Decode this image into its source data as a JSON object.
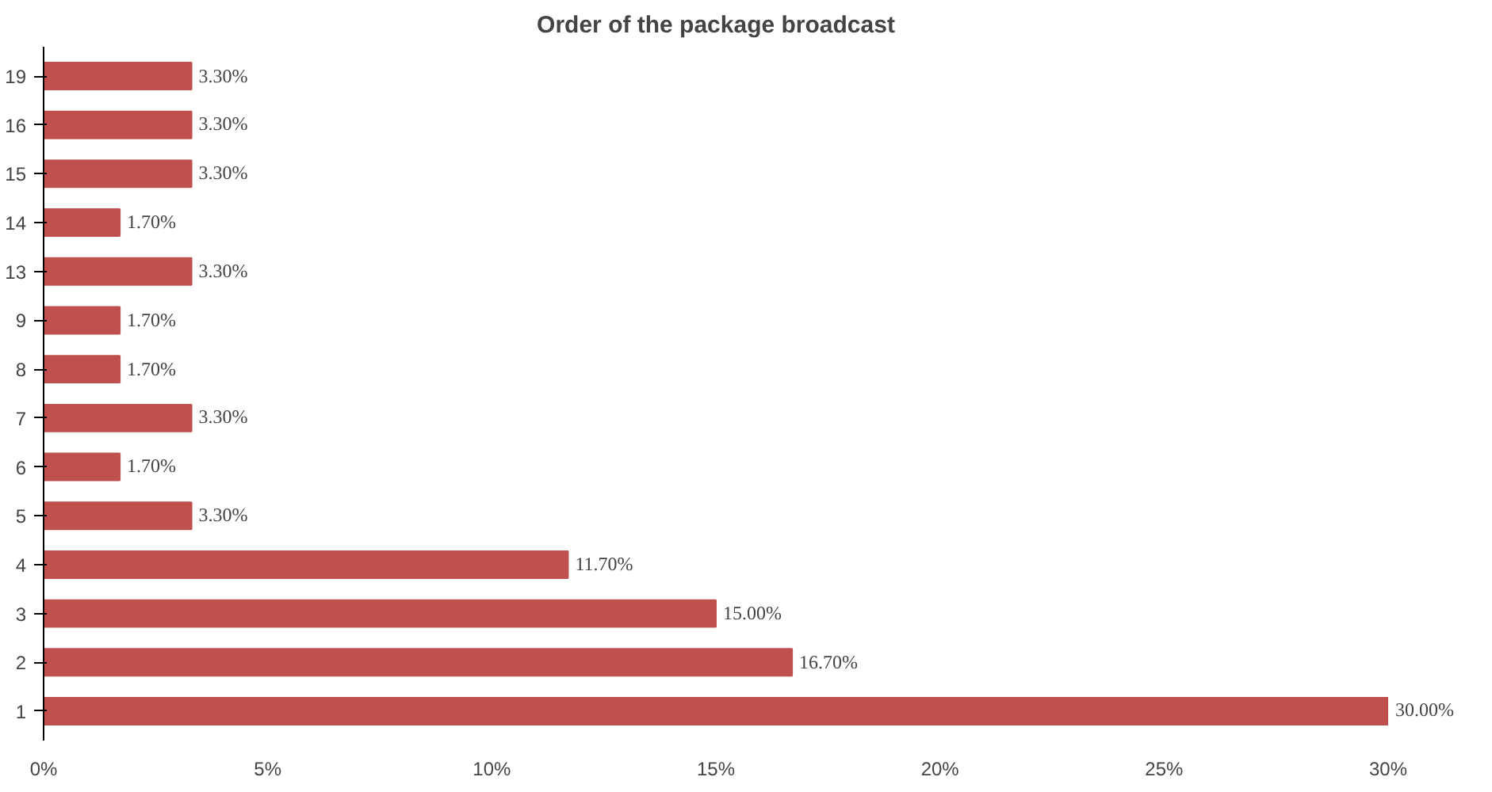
{
  "chart_data": {
    "type": "bar",
    "orientation": "horizontal",
    "title": "Order of the package broadcast",
    "categories": [
      "19",
      "16",
      "15",
      "14",
      "13",
      "9",
      "8",
      "7",
      "6",
      "5",
      "4",
      "3",
      "2",
      "1"
    ],
    "values": [
      3.3,
      3.3,
      3.3,
      1.7,
      3.3,
      1.7,
      1.7,
      3.3,
      1.7,
      3.3,
      11.7,
      15.0,
      16.7,
      30.0
    ],
    "value_labels": [
      "3.30%",
      "3.30%",
      "3.30%",
      "1.70%",
      "3.30%",
      "1.70%",
      "1.70%",
      "3.30%",
      "1.70%",
      "3.30%",
      "11.70%",
      "15.00%",
      "16.70%",
      "30.00%"
    ],
    "color": "#c0504d",
    "xlim": [
      0,
      30
    ],
    "xticks": [
      {
        "value": 0,
        "label": "0%"
      },
      {
        "value": 5,
        "label": "5%"
      },
      {
        "value": 10,
        "label": "10%"
      },
      {
        "value": 15,
        "label": "15%"
      },
      {
        "value": 20,
        "label": "20%"
      },
      {
        "value": 25,
        "label": "25%"
      },
      {
        "value": 30,
        "label": "30%"
      }
    ],
    "grid": false
  }
}
